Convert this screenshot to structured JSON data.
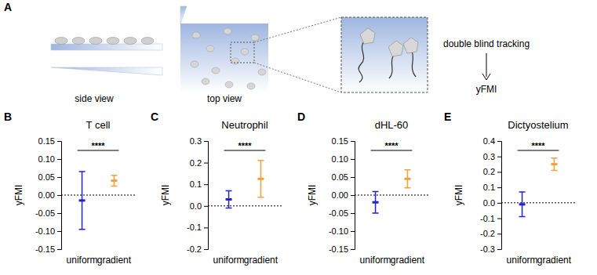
{
  "diagram": {
    "panel": "A",
    "side_label": "side view",
    "top_label": "top view",
    "step": "double blind tracking",
    "output": "yFMI"
  },
  "chart_data": [
    {
      "type": "errorbar",
      "panel": "B",
      "title": "T cell",
      "y_label": "yFMI",
      "categories": [
        "uniform",
        "gradient"
      ],
      "values": [
        -0.015,
        0.04
      ],
      "errors": [
        0.08,
        0.015
      ],
      "colors": [
        "#2323c8",
        "#f5a03c"
      ],
      "ylim": [
        -0.15,
        0.15
      ],
      "yticks": [
        -0.15,
        {
          "value": -0.1,
          "label": "-0.10"
        },
        -0.05,
        {
          "value": 0,
          "label": "0.00"
        },
        0.05,
        {
          "value": 0.1,
          "label": "0.10"
        },
        0.15
      ],
      "hline": 0,
      "annotation": "****"
    },
    {
      "type": "errorbar",
      "panel": "C",
      "title": "Neutrophil",
      "y_label": "yFMI",
      "categories": [
        "uniform",
        "gradient"
      ],
      "values": [
        0.03,
        0.125
      ],
      "errors": [
        0.04,
        0.085
      ],
      "colors": [
        "#2323c8",
        "#f5a03c"
      ],
      "ylim": [
        -0.2,
        0.3
      ],
      "yticks": [
        -0.2,
        -0.1,
        {
          "value": 0,
          "label": "0.0"
        },
        0.1,
        0.2,
        0.3
      ],
      "hline": 0,
      "annotation": "****"
    },
    {
      "type": "errorbar",
      "panel": "D",
      "title": "dHL-60",
      "y_label": "yFMI",
      "categories": [
        "uniform",
        "gradient"
      ],
      "values": [
        -0.02,
        0.045
      ],
      "errors": [
        0.03,
        0.025
      ],
      "colors": [
        "#2323c8",
        "#f5a03c"
      ],
      "ylim": [
        -0.15,
        0.15
      ],
      "yticks": [
        -0.15,
        {
          "value": -0.1,
          "label": "-0.10"
        },
        -0.05,
        {
          "value": 0,
          "label": "0.00"
        },
        0.05,
        {
          "value": 0.1,
          "label": "0.10"
        },
        0.15
      ],
      "hline": 0,
      "annotation": "****"
    },
    {
      "type": "errorbar",
      "panel": "E",
      "title": "Dictyostelium",
      "y_label": "yFMI",
      "categories": [
        "uniform",
        "gradient"
      ],
      "values": [
        -0.01,
        0.25
      ],
      "errors": [
        0.08,
        0.04
      ],
      "colors": [
        "#2323c8",
        "#f5a03c"
      ],
      "ylim": [
        -0.3,
        0.4
      ],
      "yticks": [
        -0.3,
        -0.2,
        -0.1,
        {
          "value": 0,
          "label": "0.0"
        },
        0.1,
        0.2,
        0.3,
        0.4
      ],
      "hline": 0,
      "annotation": "****"
    }
  ]
}
